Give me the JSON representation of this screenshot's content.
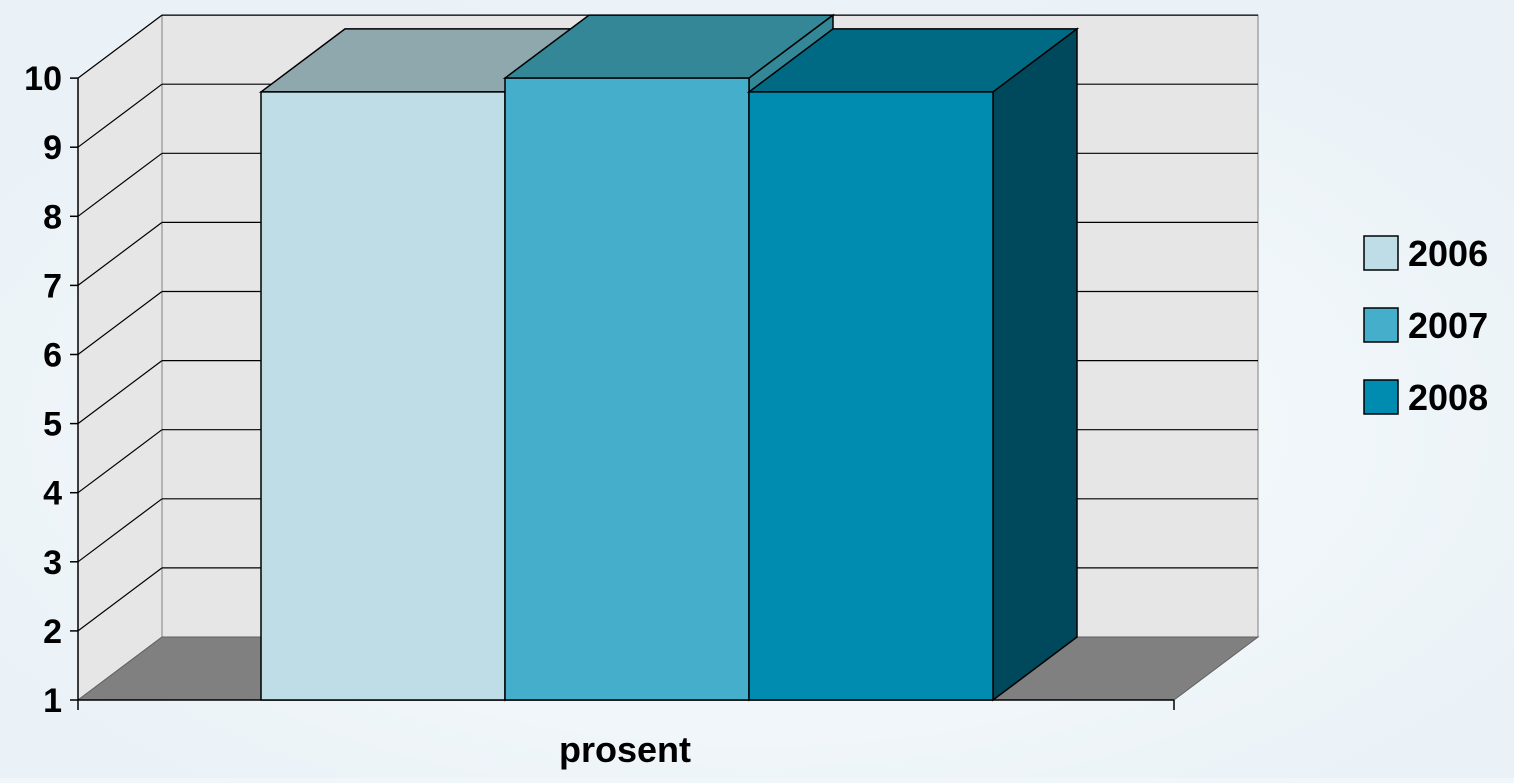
{
  "chart_data": {
    "type": "bar",
    "categories": [
      "prosent"
    ],
    "series": [
      {
        "name": "2006",
        "values": [
          9.8
        ]
      },
      {
        "name": "2007",
        "values": [
          10.0
        ]
      },
      {
        "name": "2008",
        "values": [
          9.8
        ]
      }
    ],
    "colors": {
      "2006": {
        "front": "#bedde7",
        "top": "#8ea8ae"
      },
      "2007": {
        "front": "#44aecb",
        "top": "#348797"
      },
      "2008": {
        "front": "#008bb1",
        "top": "#006984",
        "side": "#00485b"
      },
      "wall": "#e6e6e6",
      "floor": "#808080"
    },
    "yticks": [
      "1",
      "2",
      "3",
      "4",
      "5",
      "6",
      "7",
      "8",
      "9",
      "10"
    ],
    "ylim": [
      1,
      10
    ],
    "xlabel": "prosent",
    "legend_position": "right",
    "grid": true,
    "projection": "3d"
  }
}
